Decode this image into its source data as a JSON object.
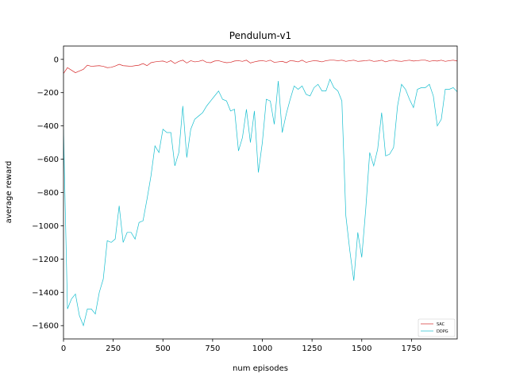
{
  "chart_data": {
    "type": "line",
    "title": "Pendulum-v1",
    "xlabel": "num episodes",
    "ylabel": "average reward",
    "xlim": [
      0,
      1980
    ],
    "ylim": [
      -1680,
      80
    ],
    "xticks": [
      0,
      250,
      500,
      750,
      1000,
      1250,
      1500,
      1750
    ],
    "xtick_labels": [
      "0",
      "250",
      "500",
      "750",
      "1000",
      "1250",
      "1500",
      "1750"
    ],
    "yticks": [
      0,
      -200,
      -400,
      -600,
      -800,
      -1000,
      -1200,
      -1400,
      -1600
    ],
    "ytick_labels": [
      "0",
      "−200",
      "−400",
      "−600",
      "−800",
      "−1000",
      "−1200",
      "−1400",
      "−1600"
    ],
    "grid": false,
    "legend_position": "lower-right",
    "series": [
      {
        "name": "SAC",
        "color": "#d62728",
        "x": [
          0,
          20,
          40,
          60,
          80,
          100,
          120,
          140,
          160,
          180,
          200,
          220,
          240,
          260,
          280,
          300,
          320,
          340,
          360,
          380,
          400,
          420,
          440,
          460,
          480,
          500,
          520,
          540,
          560,
          580,
          600,
          620,
          640,
          660,
          680,
          700,
          720,
          740,
          760,
          780,
          800,
          820,
          840,
          860,
          880,
          900,
          920,
          940,
          960,
          980,
          1000,
          1020,
          1040,
          1060,
          1080,
          1100,
          1120,
          1140,
          1160,
          1180,
          1200,
          1220,
          1240,
          1260,
          1280,
          1300,
          1320,
          1340,
          1360,
          1380,
          1400,
          1420,
          1440,
          1460,
          1480,
          1500,
          1520,
          1540,
          1560,
          1580,
          1600,
          1620,
          1640,
          1660,
          1680,
          1700,
          1720,
          1740,
          1760,
          1780,
          1800,
          1820,
          1840,
          1860,
          1880,
          1900,
          1920,
          1940,
          1960,
          1980
        ],
        "values": [
          -85,
          -50,
          -65,
          -80,
          -70,
          -60,
          -35,
          -42,
          -40,
          -38,
          -42,
          -50,
          -48,
          -40,
          -30,
          -38,
          -40,
          -42,
          -38,
          -35,
          -25,
          -38,
          -20,
          -15,
          -12,
          -10,
          -18,
          -8,
          -25,
          -12,
          -5,
          -22,
          -8,
          -15,
          -12,
          -5,
          -18,
          -20,
          -10,
          -8,
          -15,
          -20,
          -18,
          -10,
          -8,
          -12,
          -5,
          -22,
          -15,
          -10,
          -8,
          -12,
          -5,
          -18,
          -15,
          -12,
          -20,
          -8,
          -10,
          -15,
          -5,
          -18,
          -12,
          -8,
          -10,
          -15,
          -8,
          -5,
          -5,
          -8,
          -5,
          -12,
          -8,
          -5,
          -12,
          -10,
          -8,
          -5,
          -12,
          -10,
          -5,
          -15,
          -8,
          -5,
          -10,
          -12,
          -8,
          -5,
          -10,
          -8,
          -5,
          -5,
          -12,
          -8,
          -10,
          -5,
          -12,
          -8,
          -5,
          -10
        ]
      },
      {
        "name": "DDPG",
        "color": "#17becf",
        "x": [
          0,
          20,
          40,
          60,
          80,
          100,
          120,
          140,
          160,
          180,
          200,
          220,
          240,
          260,
          280,
          300,
          320,
          340,
          360,
          380,
          400,
          420,
          440,
          460,
          480,
          500,
          520,
          540,
          560,
          580,
          600,
          620,
          640,
          660,
          680,
          700,
          720,
          740,
          760,
          780,
          800,
          820,
          840,
          860,
          880,
          900,
          920,
          940,
          960,
          980,
          1000,
          1020,
          1040,
          1060,
          1080,
          1100,
          1120,
          1140,
          1160,
          1180,
          1200,
          1220,
          1240,
          1260,
          1280,
          1300,
          1320,
          1340,
          1360,
          1380,
          1400,
          1420,
          1440,
          1460,
          1480,
          1500,
          1520,
          1540,
          1560,
          1580,
          1600,
          1620,
          1640,
          1660,
          1680,
          1700,
          1720,
          1740,
          1760,
          1780,
          1800,
          1820,
          1840,
          1860,
          1880,
          1900,
          1920,
          1940,
          1960,
          1980
        ],
        "values": [
          -420,
          -1500,
          -1440,
          -1410,
          -1540,
          -1600,
          -1500,
          -1500,
          -1530,
          -1400,
          -1320,
          -1090,
          -1100,
          -1080,
          -880,
          -1100,
          -1040,
          -1040,
          -1080,
          -980,
          -970,
          -840,
          -700,
          -520,
          -560,
          -420,
          -440,
          -440,
          -640,
          -560,
          -280,
          -590,
          -420,
          -360,
          -340,
          -320,
          -280,
          -250,
          -220,
          -190,
          -240,
          -250,
          -310,
          -300,
          -550,
          -470,
          -300,
          -500,
          -310,
          -680,
          -500,
          -240,
          -250,
          -390,
          -130,
          -440,
          -330,
          -240,
          -160,
          -180,
          -160,
          -210,
          -220,
          -170,
          -150,
          -190,
          -190,
          -120,
          -170,
          -190,
          -250,
          -940,
          -1150,
          -1330,
          -1040,
          -1190,
          -900,
          -560,
          -640,
          -540,
          -320,
          -580,
          -570,
          -530,
          -280,
          -150,
          -180,
          -240,
          -290,
          -180,
          -170,
          -170,
          -150,
          -220,
          -400,
          -360,
          -180,
          -180,
          -170,
          -195
        ]
      }
    ]
  }
}
